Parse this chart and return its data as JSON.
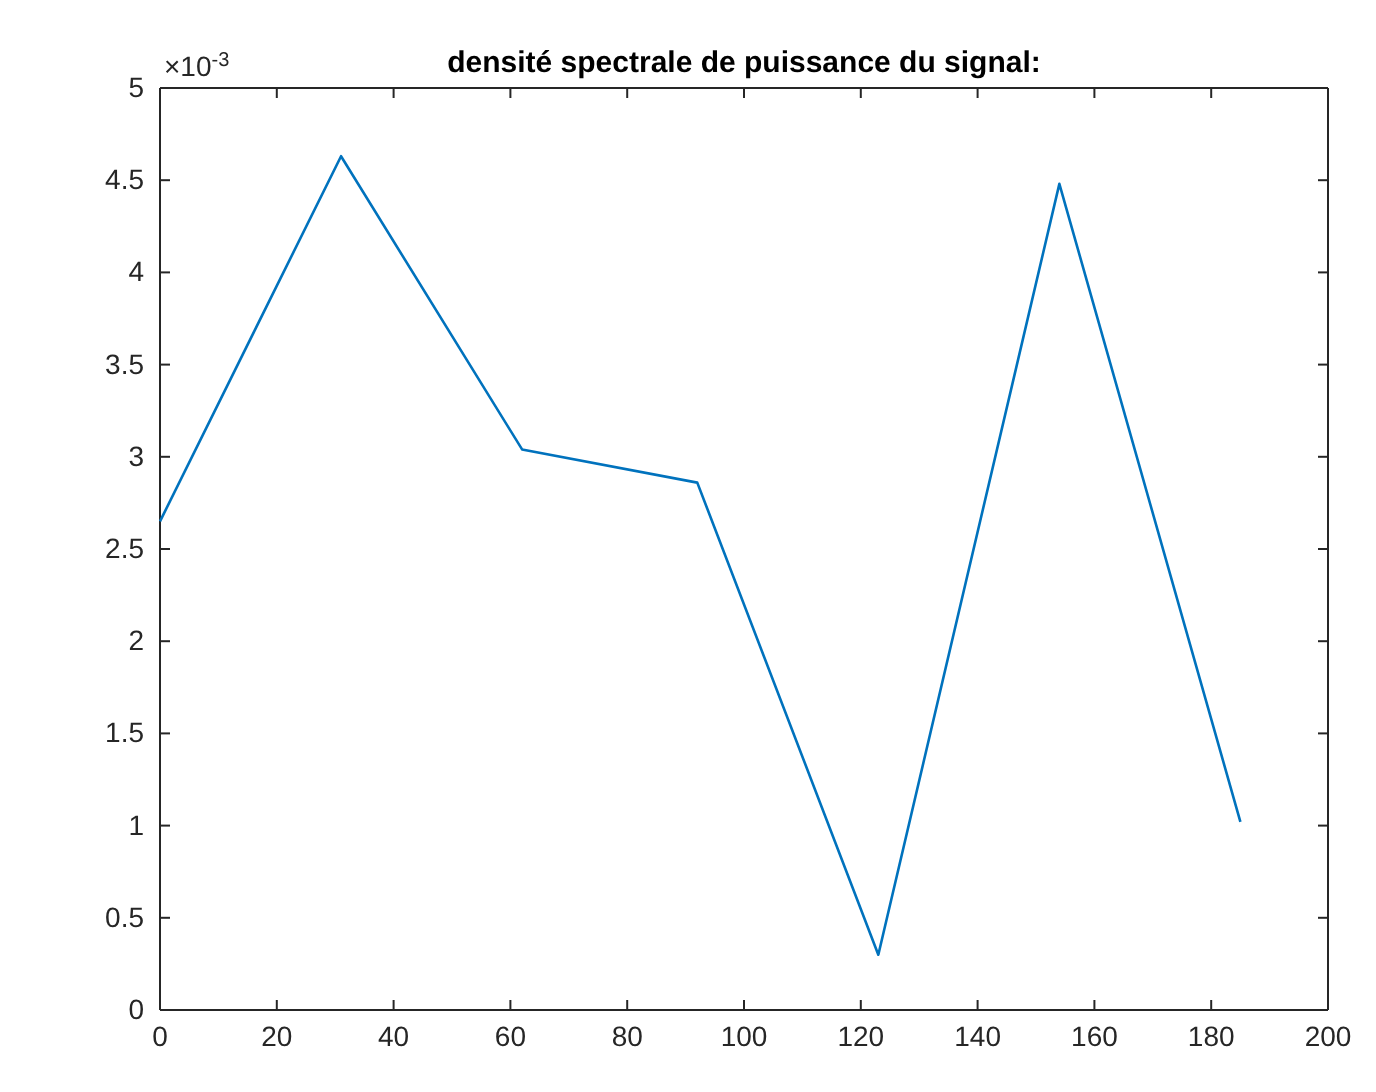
{
  "chart_data": {
    "type": "line",
    "title": "densité spectrale de puissance du signal:",
    "x": [
      0,
      31,
      62,
      92,
      123,
      154,
      185
    ],
    "series": [
      {
        "color": "#0072bd",
        "values": [
          2.65,
          4.63,
          3.04,
          2.86,
          0.3,
          4.48,
          1.02
        ]
      }
    ],
    "xlim": [
      0,
      200
    ],
    "xticks": [
      0,
      20,
      40,
      60,
      80,
      100,
      120,
      140,
      160,
      180,
      200
    ],
    "ylim": [
      0,
      5
    ],
    "yticks": [
      0,
      0.5,
      1,
      1.5,
      2,
      2.5,
      3,
      3.5,
      4,
      4.5,
      5
    ],
    "annotations": [
      "×10$^{-3}$"
    ],
    "grid": false,
    "marker": "none",
    "line_style": "solid"
  }
}
